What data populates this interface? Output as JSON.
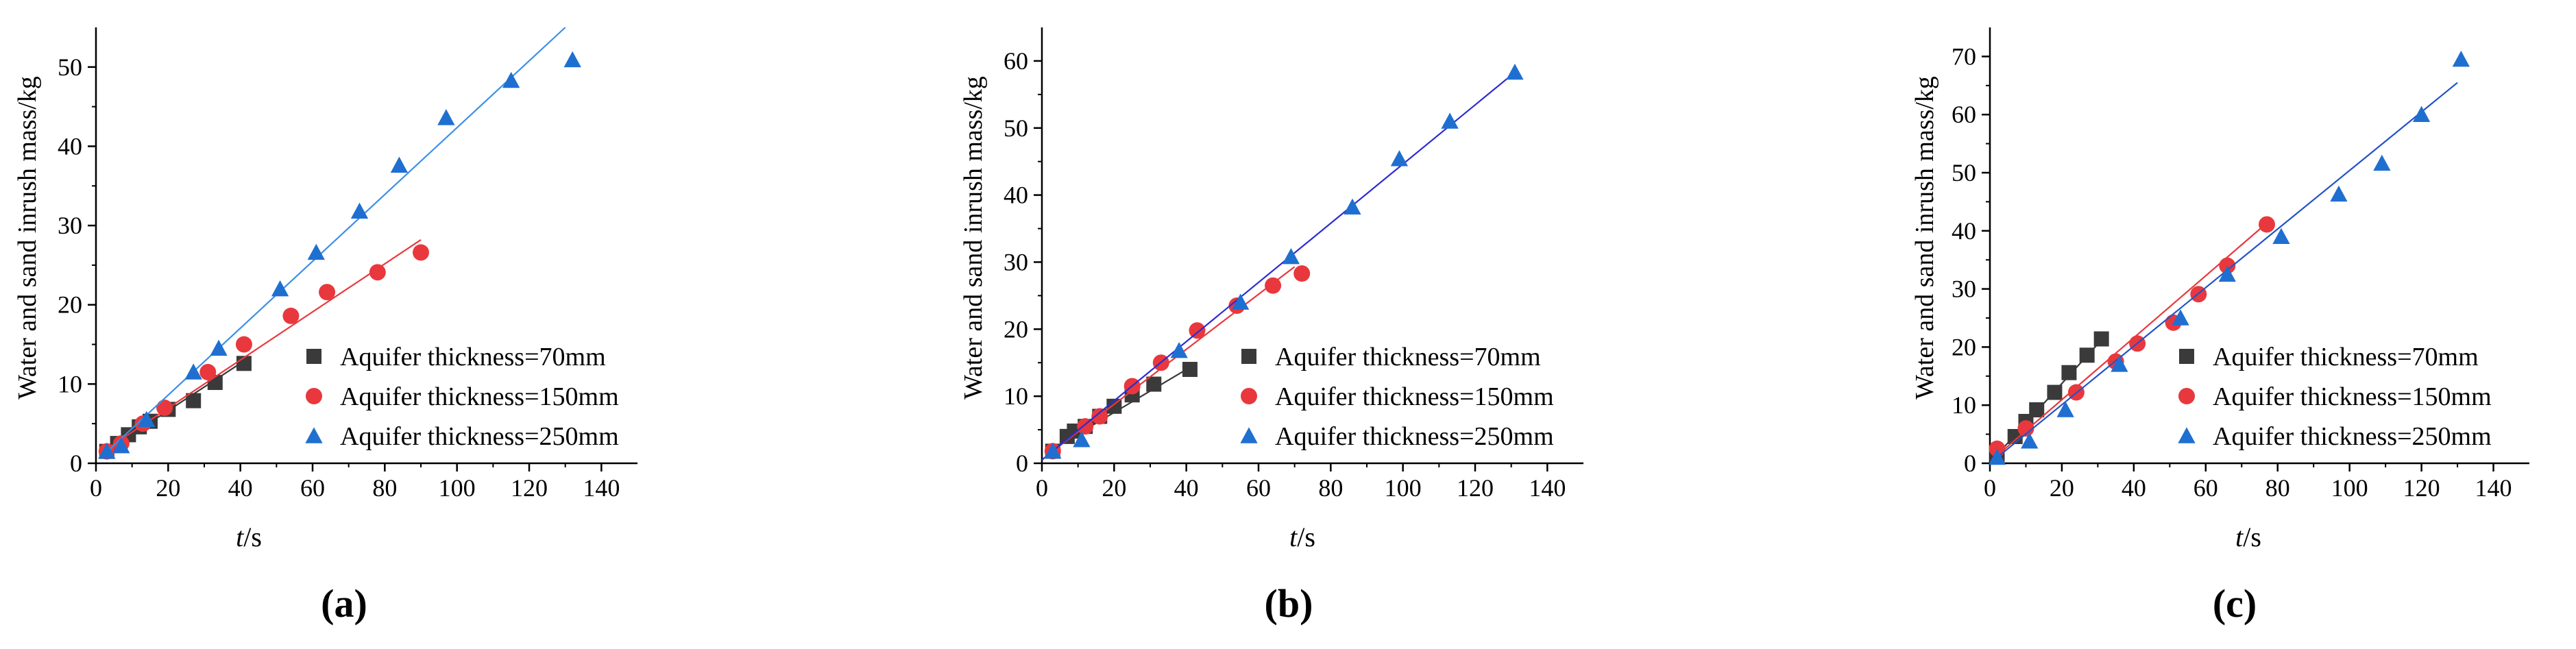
{
  "figure": {
    "panels": [
      "(a)",
      "(b)",
      "(c)"
    ],
    "series_names": [
      "Aquifer thickness=70mm",
      "Aquifer thickness=150mm",
      "Aquifer thickness=250mm"
    ],
    "colors": {
      "s70": "#3a3a3a",
      "s150": "#e8383d",
      "s250_markers": "#1f6fd1",
      "s250_line_a": "#3b8fe8",
      "s250_line_b": "#2b2bd4",
      "s250_line_c": "#2252c9",
      "axis": "#000000"
    }
  },
  "chart_data": [
    {
      "type": "scatter",
      "panel": "(a)",
      "title": "",
      "xlabel": "t/s",
      "ylabel": "Water and sand inrush mass/kg",
      "xlim": [
        0,
        150
      ],
      "ylim": [
        0,
        55
      ],
      "xticks": [
        0,
        20,
        40,
        60,
        80,
        100,
        120,
        140
      ],
      "yticks": [
        0,
        10,
        20,
        30,
        40,
        50
      ],
      "legend": "lower-right",
      "series": [
        {
          "name": "Aquifer thickness=70mm",
          "marker": "square",
          "x": [
            3,
            6,
            9,
            12,
            15,
            20,
            27,
            33,
            41
          ],
          "y": [
            1.5,
            2.5,
            3.6,
            4.6,
            5.3,
            6.8,
            7.9,
            10.2,
            12.6
          ],
          "fit": [
            [
              1,
              1.0
            ],
            [
              41,
              12.9
            ]
          ]
        },
        {
          "name": "Aquifer thickness=150mm",
          "marker": "circle",
          "x": [
            3,
            7,
            13,
            19,
            31,
            41,
            54,
            64,
            78,
            90
          ],
          "y": [
            1.5,
            2.5,
            5.0,
            7.0,
            11.5,
            15.0,
            18.6,
            21.6,
            24.1,
            26.6
          ],
          "fit": [
            [
              1,
              1.2
            ],
            [
              90,
              28.2
            ]
          ]
        },
        {
          "name": "Aquifer thickness=250mm",
          "marker": "triangle",
          "x": [
            3,
            7,
            14,
            27,
            34,
            51,
            61,
            73,
            84,
            97,
            115,
            132
          ],
          "y": [
            1.5,
            2.2,
            5.5,
            11.5,
            14.5,
            22.0,
            26.6,
            31.8,
            37.6,
            43.6,
            48.3,
            50.9
          ],
          "fit": [
            [
              1,
              0.6
            ],
            [
              130,
              55.0
            ]
          ]
        }
      ]
    },
    {
      "type": "scatter",
      "panel": "(b)",
      "title": "",
      "xlabel": "t/s",
      "ylabel": "Water and sand inrush mass/kg",
      "xlim": [
        0,
        150
      ],
      "ylim": [
        0,
        65
      ],
      "xticks": [
        0,
        20,
        40,
        60,
        80,
        100,
        120,
        140
      ],
      "yticks": [
        0,
        10,
        20,
        30,
        40,
        50,
        60
      ],
      "legend": "lower-right",
      "series": [
        {
          "name": "Aquifer thickness=70mm",
          "marker": "square",
          "x": [
            3,
            7,
            9,
            12,
            16,
            20,
            25,
            31,
            41
          ],
          "y": [
            1.8,
            4.0,
            4.8,
            5.5,
            7.0,
            8.5,
            10.2,
            11.8,
            14.0
          ],
          "fit": [
            [
              1,
              1.5
            ],
            [
              41,
              14.3
            ]
          ]
        },
        {
          "name": "Aquifer thickness=150mm",
          "marker": "circle",
          "x": [
            3,
            12,
            16,
            25,
            33,
            43,
            54,
            64,
            72
          ],
          "y": [
            1.8,
            5.5,
            7.0,
            11.5,
            15.0,
            19.8,
            23.5,
            26.5,
            28.3
          ],
          "fit": [
            [
              1,
              1.0
            ],
            [
              70,
              29.3
            ]
          ]
        },
        {
          "name": "Aquifer thickness=250mm",
          "marker": "triangle",
          "x": [
            3,
            11,
            38,
            55,
            69,
            86,
            99,
            113,
            131
          ],
          "y": [
            1.8,
            3.5,
            16.8,
            24.0,
            30.8,
            38.2,
            45.4,
            51.0,
            58.3
          ],
          "fit": [
            [
              0,
              0.5
            ],
            [
              131,
              58.3
            ]
          ]
        }
      ]
    },
    {
      "type": "scatter",
      "panel": "(c)",
      "title": "",
      "xlabel": "t/s",
      "ylabel": "Water and sand inrush mass/kg",
      "xlim": [
        0,
        150
      ],
      "ylim": [
        0,
        75
      ],
      "xticks": [
        0,
        20,
        40,
        60,
        80,
        100,
        120,
        140
      ],
      "yticks": [
        0,
        10,
        20,
        30,
        40,
        50,
        60,
        70
      ],
      "legend": "lower-right",
      "series": [
        {
          "name": "Aquifer thickness=70mm",
          "marker": "square",
          "x": [
            2,
            7,
            10,
            13,
            18,
            22,
            27,
            31
          ],
          "y": [
            1.5,
            4.6,
            7.2,
            9.2,
            12.2,
            15.6,
            18.6,
            21.4
          ],
          "fit": [
            [
              1,
              0.8
            ],
            [
              31,
              21.2
            ]
          ]
        },
        {
          "name": "Aquifer thickness=150mm",
          "marker": "circle",
          "x": [
            2,
            10,
            24,
            35,
            41,
            51,
            58,
            66,
            77
          ],
          "y": [
            2.5,
            6.0,
            12.2,
            17.5,
            20.6,
            24.2,
            29.1,
            34.0,
            41.1
          ],
          "fit": [
            [
              1,
              0.8
            ],
            [
              76,
              40.8
            ]
          ]
        },
        {
          "name": "Aquifer thickness=250mm",
          "marker": "triangle",
          "x": [
            2,
            11,
            21,
            36,
            53,
            66,
            81,
            97,
            109,
            120,
            131
          ],
          "y": [
            1.0,
            3.8,
            9.2,
            17.0,
            25.0,
            32.5,
            39.0,
            46.3,
            51.6,
            60.0,
            69.5
          ],
          "fit": [
            [
              1,
              0.5
            ],
            [
              130,
              65.5
            ]
          ]
        }
      ]
    }
  ]
}
